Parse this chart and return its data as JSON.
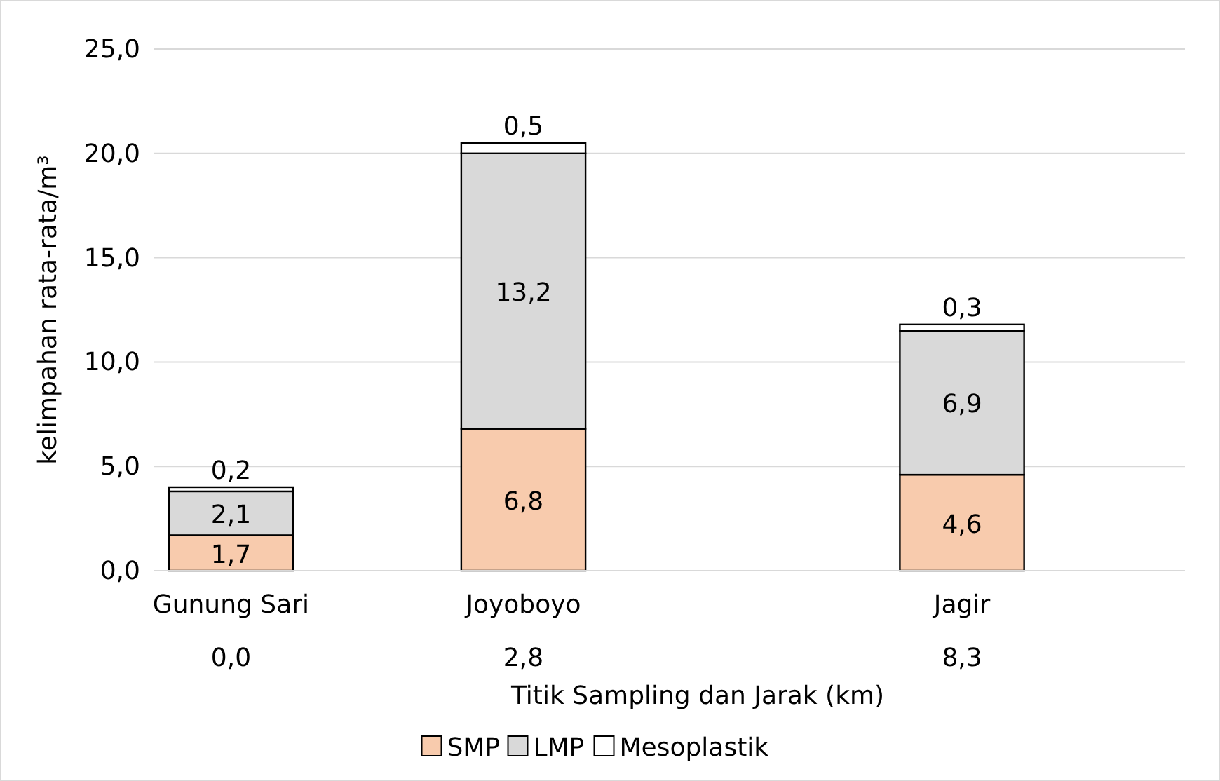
{
  "chart_data": {
    "type": "bar",
    "stacked": true,
    "xlabel": "Titik Sampling dan Jarak (km)",
    "ylabel": "kelimpahan rata-rata/m³",
    "categories": [
      "Gunung Sari\n0,0",
      null,
      "Joyoboyo\n2,8",
      null,
      null,
      "Jagir\n8,3",
      null
    ],
    "series": [
      {
        "name": "SMP",
        "color": "#f8cbad",
        "values": [
          1.7,
          null,
          6.8,
          null,
          null,
          4.6,
          null
        ],
        "value_labels": [
          "1,7",
          null,
          "6,8",
          null,
          null,
          "4,6",
          null
        ]
      },
      {
        "name": "LMP",
        "color": "#d9d9d9",
        "values": [
          2.1,
          null,
          13.2,
          null,
          null,
          6.9,
          null
        ],
        "value_labels": [
          "2,1",
          null,
          "13,2",
          null,
          null,
          "6,9",
          null
        ]
      },
      {
        "name": "Mesoplastik",
        "color": "#ffffff",
        "values": [
          0.2,
          null,
          0.5,
          null,
          null,
          0.3,
          null
        ],
        "value_labels": [
          "0,2",
          null,
          "0,5",
          null,
          null,
          "0,3",
          null
        ]
      }
    ],
    "ylim": [
      0,
      25
    ],
    "yticks": [
      {
        "value": 0,
        "label": "0,0"
      },
      {
        "value": 5,
        "label": "5,0"
      },
      {
        "value": 10,
        "label": "10,0"
      },
      {
        "value": 15,
        "label": "15,0"
      },
      {
        "value": 20,
        "label": "20,0"
      },
      {
        "value": 25,
        "label": "25,0"
      }
    ],
    "grid": "y",
    "legend": "bottom"
  }
}
